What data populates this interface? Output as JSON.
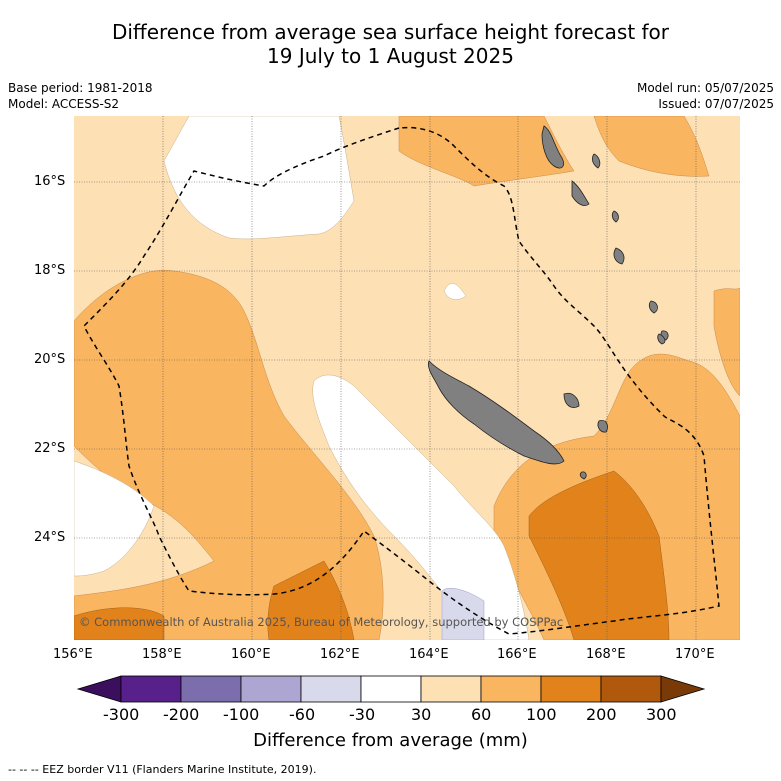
{
  "title_line1": "Difference from average sea surface height forecast for",
  "title_line2": "19 July to 1 August 2025",
  "base_period": "Base period: 1981-2018",
  "model": "Model: ACCESS-S2",
  "model_run": "Model run: 05/07/2025",
  "issued": "Issued: 07/07/2025",
  "copyright": "© Commonwealth of Australia 2025, Bureau of Meteorology, supported by COSPPac",
  "lat_ticks": [
    "16°S",
    "18°S",
    "20°S",
    "22°S",
    "24°S"
  ],
  "lon_ticks": [
    "156°E",
    "158°E",
    "160°E",
    "162°E",
    "164°E",
    "166°E",
    "168°E",
    "170°E"
  ],
  "colorbar": {
    "labels": [
      "-300",
      "-200",
      "-100",
      "-60",
      "-30",
      "30",
      "60",
      "100",
      "200",
      "300"
    ],
    "colors": [
      "#3b0f5e",
      "#57208a",
      "#7c6ead",
      "#aea6d2",
      "#d9d9ec",
      "#ffffff",
      "#fde0b4",
      "#f9b560",
      "#e2821b",
      "#b0590c",
      "#7a3a07"
    ],
    "title": "Difference from average (mm)"
  },
  "legend_footer": "--  --  -- EEZ border V11 (Flanders Marine Institute, 2019).",
  "colors": {
    "land": "#808080",
    "eez": "#000000"
  }
}
